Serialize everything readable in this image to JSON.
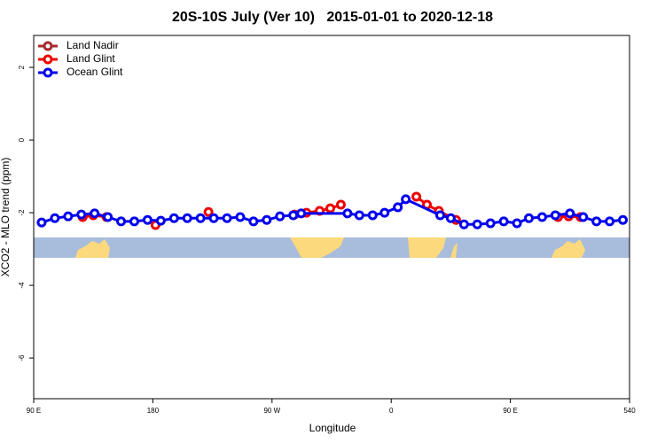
{
  "chart_data": {
    "type": "line",
    "title": "20S-10S July (Ver 10)   2015-01-01 to 2020-12-18",
    "x_label": "Longitude",
    "y_label": "XCO2 - MLO trend (ppm)",
    "xlim": [
      90,
      540
    ],
    "xticks": [
      {
        "value": 90,
        "label": "90 E"
      },
      180,
      {
        "value": 270,
        "label": "90 W"
      },
      {
        "value": 360,
        "label": "0"
      },
      {
        "value": 450,
        "label": "90 E"
      },
      540
    ],
    "ylim": [
      -7.12,
      2.88
    ],
    "yticks": [
      -6,
      -4,
      -2,
      0,
      2
    ],
    "legend": "top-left",
    "series": [
      {
        "name": "Land Nadir",
        "color": "#a52a2a",
        "x": [],
        "values": []
      },
      {
        "name": "Land Glint",
        "color": "#ee0000",
        "x": [
          127,
          135,
          145,
          null,
          182,
          null,
          222,
          null,
          287,
          296,
          306,
          314,
          322,
          null,
          379,
          387,
          396,
          409,
          null,
          486,
          494,
          503
        ],
        "values": [
          -2.12,
          -2.07,
          -2.12,
          null,
          -2.34,
          null,
          -1.98,
          null,
          -2.05,
          -2.0,
          -1.95,
          -1.88,
          -1.78,
          null,
          -1.56,
          -1.78,
          -1.95,
          -2.2,
          null,
          -2.12,
          -2.1,
          -2.12
        ]
      },
      {
        "name": "Ocean Glint",
        "color": "#0000ee",
        "x": [
          96,
          106,
          116,
          126,
          136,
          146,
          156,
          166,
          176,
          186,
          196,
          206,
          216,
          226,
          236,
          246,
          256,
          266,
          276,
          286,
          292,
          327,
          336,
          346,
          355,
          365,
          371,
          397,
          405,
          415,
          425,
          435,
          445,
          455,
          464,
          474,
          484,
          495,
          505,
          515,
          525,
          535
        ],
        "values": [
          -2.27,
          -2.15,
          -2.1,
          -2.05,
          -2.02,
          -2.12,
          -2.24,
          -2.24,
          -2.2,
          -2.22,
          -2.15,
          -2.15,
          -2.15,
          -2.15,
          -2.15,
          -2.12,
          -2.24,
          -2.2,
          -2.1,
          -2.07,
          -2.02,
          -2.02,
          -2.07,
          -2.07,
          -2.0,
          -1.85,
          -1.63,
          -2.07,
          -2.15,
          -2.32,
          -2.32,
          -2.29,
          -2.24,
          -2.29,
          -2.15,
          -2.12,
          -2.07,
          -2.02,
          -2.12,
          -2.24,
          -2.24,
          -2.2
        ]
      }
    ]
  }
}
